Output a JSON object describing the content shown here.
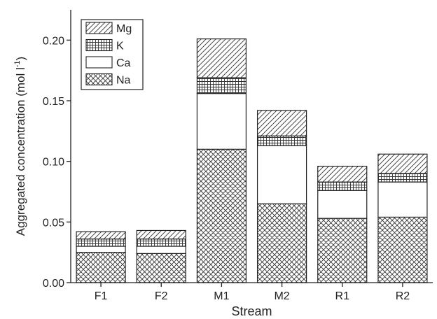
{
  "chart_data": {
    "type": "bar",
    "stacked": true,
    "categories": [
      "F1",
      "F2",
      "M1",
      "M2",
      "R1",
      "R2"
    ],
    "series": [
      {
        "name": "Na",
        "pattern": "crosshatch",
        "values": [
          0.025,
          0.024,
          0.11,
          0.065,
          0.053,
          0.054
        ]
      },
      {
        "name": "Ca",
        "pattern": "blank",
        "values": [
          0.005,
          0.006,
          0.046,
          0.048,
          0.023,
          0.029
        ]
      },
      {
        "name": "K",
        "pattern": "grid",
        "values": [
          0.006,
          0.006,
          0.013,
          0.008,
          0.007,
          0.007
        ]
      },
      {
        "name": "Mg",
        "pattern": "diagonal",
        "values": [
          0.006,
          0.007,
          0.032,
          0.021,
          0.013,
          0.016
        ]
      }
    ],
    "xlabel": "Stream",
    "ylabel": "Aggregated concentration (mol l",
    "ylabel_sup": "-1",
    "ylabel_end": ")",
    "ylim": [
      0,
      0.225
    ],
    "yticks": [
      0.0,
      0.05,
      0.1,
      0.15,
      0.2
    ],
    "ytick_labels": [
      "0.00",
      "0.05",
      "0.10",
      "0.15",
      "0.20"
    ],
    "legend": {
      "position": "top-left",
      "order": [
        "Mg",
        "K",
        "Ca",
        "Na"
      ]
    },
    "grid": false
  }
}
